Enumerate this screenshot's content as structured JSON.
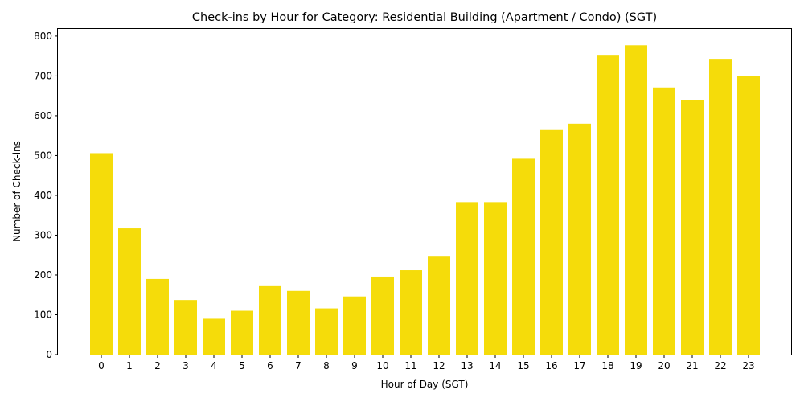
{
  "chart_data": {
    "type": "bar",
    "title": "Check-ins by Hour for Category: Residential Building (Apartment / Condo) (SGT)",
    "xlabel": "Hour of Day (SGT)",
    "ylabel": "Number of Check-ins",
    "categories": [
      "0",
      "1",
      "2",
      "3",
      "4",
      "5",
      "6",
      "7",
      "8",
      "9",
      "10",
      "11",
      "12",
      "13",
      "14",
      "15",
      "16",
      "17",
      "18",
      "19",
      "20",
      "21",
      "22",
      "23"
    ],
    "values": [
      506,
      317,
      190,
      137,
      90,
      110,
      172,
      160,
      116,
      146,
      196,
      212,
      246,
      383,
      383,
      492,
      564,
      580,
      751,
      777,
      671,
      639,
      741,
      699
    ],
    "ylim": [
      0,
      820
    ],
    "yticks": [
      0,
      100,
      200,
      300,
      400,
      500,
      600,
      700,
      800
    ],
    "bar_color": "#f5dc0a",
    "grid": false,
    "legend": "none"
  }
}
